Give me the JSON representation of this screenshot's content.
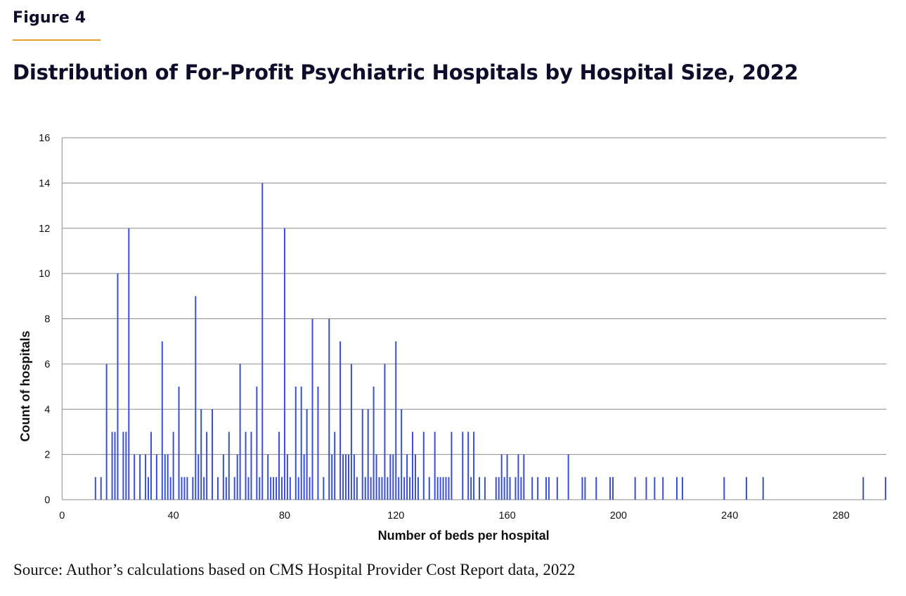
{
  "header": {
    "figure_label": "Figure 4",
    "title": "Distribution of For-Profit Psychiatric Hospitals by Hospital Size, 2022"
  },
  "footer": {
    "source": "Source: Author’s calculations based on CMS Hospital Provider Cost Report data, 2022"
  },
  "colors": {
    "bar": "#3a4fd8",
    "accent_rule": "#e8a02c",
    "gridline": "#8c8c8c",
    "text": "#0d0d2b"
  },
  "chart_data": {
    "type": "bar",
    "title": "Distribution of For-Profit Psychiatric Hospitals by Hospital Size, 2022",
    "xlabel": "Number of beds per hospital",
    "ylabel": "Count of hospitals",
    "xlim": [
      0,
      296
    ],
    "ylim": [
      0,
      16
    ],
    "xticks": [
      0,
      40,
      80,
      120,
      160,
      200,
      240,
      280
    ],
    "yticks": [
      0,
      2,
      4,
      6,
      8,
      10,
      12,
      14,
      16
    ],
    "grid": "horizontal",
    "legend": "none",
    "x": [
      12,
      14,
      16,
      18,
      19,
      20,
      22,
      23,
      24,
      26,
      28,
      30,
      31,
      32,
      34,
      36,
      37,
      38,
      39,
      40,
      42,
      43,
      44,
      45,
      47,
      48,
      49,
      50,
      51,
      52,
      54,
      56,
      58,
      59,
      60,
      62,
      63,
      64,
      66,
      67,
      68,
      70,
      71,
      72,
      74,
      75,
      76,
      77,
      78,
      79,
      80,
      81,
      82,
      84,
      85,
      86,
      87,
      88,
      89,
      90,
      92,
      94,
      96,
      97,
      98,
      100,
      101,
      102,
      103,
      104,
      105,
      106,
      108,
      109,
      110,
      111,
      112,
      113,
      114,
      115,
      116,
      117,
      118,
      119,
      120,
      121,
      122,
      123,
      124,
      125,
      126,
      127,
      128,
      130,
      132,
      134,
      135,
      136,
      137,
      138,
      139,
      140,
      144,
      146,
      147,
      148,
      150,
      152,
      156,
      157,
      158,
      159,
      160,
      161,
      163,
      164,
      165,
      166,
      169,
      171,
      174,
      175,
      178,
      182,
      187,
      188,
      192,
      197,
      198,
      206,
      210,
      213,
      216,
      221,
      223,
      238,
      246,
      252,
      288,
      296
    ],
    "values": [
      1,
      1,
      6,
      3,
      3,
      10,
      3,
      3,
      12,
      2,
      2,
      2,
      1,
      3,
      2,
      7,
      2,
      2,
      1,
      3,
      5,
      1,
      1,
      1,
      1,
      9,
      2,
      4,
      1,
      3,
      4,
      1,
      2,
      1,
      3,
      1,
      2,
      6,
      3,
      1,
      3,
      5,
      1,
      14,
      2,
      1,
      1,
      1,
      3,
      1,
      12,
      2,
      1,
      5,
      1,
      5,
      2,
      4,
      1,
      8,
      5,
      1,
      8,
      2,
      3,
      7,
      2,
      2,
      2,
      6,
      2,
      1,
      4,
      1,
      4,
      1,
      5,
      2,
      1,
      1,
      6,
      1,
      2,
      2,
      7,
      1,
      4,
      1,
      2,
      1,
      3,
      2,
      1,
      3,
      1,
      3,
      1,
      1,
      1,
      1,
      1,
      3,
      3,
      3,
      1,
      3,
      1,
      1,
      1,
      1,
      2,
      1,
      2,
      1,
      1,
      2,
      1,
      2,
      1,
      1,
      1,
      1,
      1,
      2,
      1,
      1,
      1,
      1,
      1,
      1,
      1,
      1,
      1,
      1,
      1,
      1,
      1,
      1,
      1,
      1
    ]
  }
}
